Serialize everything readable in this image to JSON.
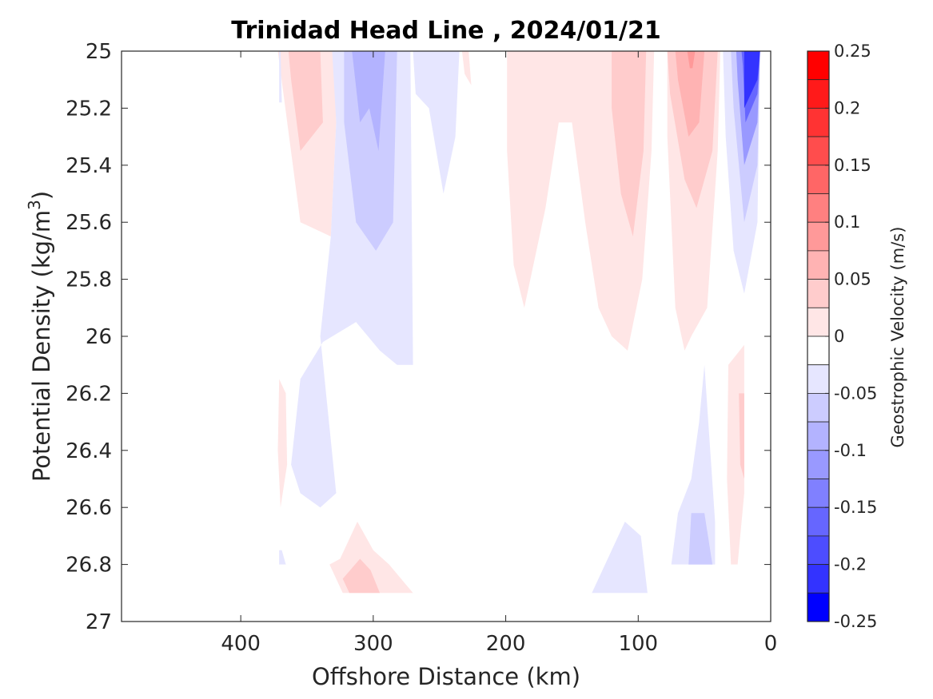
{
  "chart_data": {
    "type": "heatmap",
    "subtype": "filled-contour",
    "title": "Trinidad Head Line , 2024/01/21",
    "xlabel": "Offshore Distance (km)",
    "ylabel_prefix": "Potential Density (kg/m",
    "ylabel_sup": "3",
    "ylabel_suffix": ")",
    "colorbar_label": "Geostrophic Velocity (m/s)",
    "x_reversed": true,
    "xlim": [
      0,
      490
    ],
    "ylim": [
      25,
      27
    ],
    "y_reversed": true,
    "x_ticks": [
      400,
      300,
      200,
      100,
      0
    ],
    "x_tick_labels": [
      "400",
      "300",
      "200",
      "100",
      "0"
    ],
    "y_ticks": [
      25,
      25.2,
      25.4,
      25.6,
      25.8,
      26,
      26.2,
      26.4,
      26.6,
      26.8,
      27
    ],
    "y_tick_labels": [
      "25",
      "25.2",
      "25.4",
      "25.6",
      "25.8",
      "26",
      "26.2",
      "26.4",
      "26.6",
      "26.8",
      "27"
    ],
    "colorbar_ticks": [
      0.25,
      0.2,
      0.15,
      0.1,
      0.05,
      0,
      -0.05,
      -0.1,
      -0.15,
      -0.2,
      -0.25
    ],
    "colorbar_tick_labels": [
      "0.25",
      "0.2",
      "0.15",
      "0.1",
      "0.05",
      "0",
      "-0.05",
      "-0.1",
      "-0.15",
      "-0.2",
      "-0.25"
    ],
    "colorbar_levels": [
      {
        "range": [
          0.225,
          0.25
        ],
        "color": "#ff0000"
      },
      {
        "range": [
          0.2,
          0.225
        ],
        "color": "#ff1a1a"
      },
      {
        "range": [
          0.175,
          0.2
        ],
        "color": "#ff3333"
      },
      {
        "range": [
          0.15,
          0.175
        ],
        "color": "#ff4d4d"
      },
      {
        "range": [
          0.125,
          0.15
        ],
        "color": "#ff6666"
      },
      {
        "range": [
          0.1,
          0.125
        ],
        "color": "#ff8080"
      },
      {
        "range": [
          0.075,
          0.1
        ],
        "color": "#ff9999"
      },
      {
        "range": [
          0.05,
          0.075
        ],
        "color": "#ffb3b3"
      },
      {
        "range": [
          0.025,
          0.05
        ],
        "color": "#ffcccc"
      },
      {
        "range": [
          0.0,
          0.025
        ],
        "color": "#ffe6e6"
      },
      {
        "range": [
          -0.025,
          0.0
        ],
        "color": "#ffffff"
      },
      {
        "range": [
          -0.0001,
          0.0001
        ],
        "color": "#ffffff"
      },
      {
        "range": [
          -0.05,
          -0.025
        ],
        "color": "#e6e6ff"
      },
      {
        "range": [
          -0.075,
          -0.05
        ],
        "color": "#ccccff"
      },
      {
        "range": [
          -0.1,
          -0.075
        ],
        "color": "#b3b3ff"
      },
      {
        "range": [
          -0.125,
          -0.1
        ],
        "color": "#9999ff"
      },
      {
        "range": [
          -0.15,
          -0.125
        ],
        "color": "#8080ff"
      },
      {
        "range": [
          -0.175,
          -0.15
        ],
        "color": "#6666ff"
      },
      {
        "range": [
          -0.2,
          -0.175
        ],
        "color": "#4d4dff"
      },
      {
        "range": [
          -0.225,
          -0.2
        ],
        "color": "#3333ff"
      },
      {
        "range": [
          -0.25,
          -0.225
        ],
        "color": "#0000ff"
      }
    ],
    "regions": [
      {
        "id": "pos-370-top",
        "color": "#ffe6e6",
        "points": [
          [
            380,
            25
          ],
          [
            330,
            25
          ],
          [
            328,
            25.25
          ],
          [
            332,
            25.65
          ],
          [
            355,
            25.6
          ],
          [
            372,
            25.0
          ]
        ]
      },
      {
        "id": "pos-370-core",
        "color": "#ffcccc",
        "points": [
          [
            364,
            25
          ],
          [
            340,
            25
          ],
          [
            338,
            25.25
          ],
          [
            355,
            25.35
          ],
          [
            362,
            25.1
          ]
        ]
      },
      {
        "id": "neg-300-wide",
        "color": "#e6e6ff",
        "points": [
          [
            331,
            25
          ],
          [
            272,
            25
          ],
          [
            270,
            26.1
          ],
          [
            282,
            26.1
          ],
          [
            295,
            26.05
          ],
          [
            313,
            25.95
          ],
          [
            338,
            26.02
          ],
          [
            355,
            26.15
          ],
          [
            362,
            26.45
          ],
          [
            355,
            26.55
          ],
          [
            340,
            26.6
          ],
          [
            328,
            26.55
          ],
          [
            340,
            26.0
          ],
          [
            332,
            25.65
          ],
          [
            328,
            25.25
          ]
        ]
      },
      {
        "id": "neg-300-mid",
        "color": "#ccccff",
        "points": [
          [
            322,
            25
          ],
          [
            282,
            25
          ],
          [
            285,
            25.6
          ],
          [
            298,
            25.7
          ],
          [
            313,
            25.6
          ],
          [
            322,
            25.25
          ]
        ]
      },
      {
        "id": "neg-300-core",
        "color": "#b3b3ff",
        "points": [
          [
            316,
            25
          ],
          [
            291,
            25
          ],
          [
            296,
            25.35
          ],
          [
            303,
            25.2
          ],
          [
            310,
            25.25
          ]
        ]
      },
      {
        "id": "neg-250",
        "color": "#e6e6ff",
        "points": [
          [
            270,
            25
          ],
          [
            235,
            25
          ],
          [
            238,
            25.3
          ],
          [
            247,
            25.5
          ],
          [
            258,
            25.2
          ],
          [
            268,
            25.15
          ]
        ]
      },
      {
        "id": "pos-230",
        "color": "#ffe6e6",
        "points": [
          [
            233,
            25
          ],
          [
            228,
            25
          ],
          [
            226,
            25.12
          ],
          [
            231,
            25.08
          ]
        ]
      },
      {
        "id": "pos-200-100",
        "color": "#ffe6e6",
        "points": [
          [
            199,
            25
          ],
          [
            88,
            25
          ],
          [
            90,
            25.35
          ],
          [
            97,
            25.8
          ],
          [
            108,
            26.05
          ],
          [
            120,
            26.0
          ],
          [
            130,
            25.9
          ],
          [
            140,
            25.6
          ],
          [
            150,
            25.25
          ],
          [
            160,
            25.25
          ],
          [
            170,
            25.55
          ],
          [
            186,
            25.9
          ],
          [
            194,
            25.75
          ],
          [
            199,
            25.35
          ]
        ]
      },
      {
        "id": "pos-100-core",
        "color": "#ffcccc",
        "points": [
          [
            120,
            25
          ],
          [
            94,
            25
          ],
          [
            96,
            25.35
          ],
          [
            104,
            25.65
          ],
          [
            113,
            25.5
          ],
          [
            120,
            25.2
          ]
        ]
      },
      {
        "id": "pos-60-wide",
        "color": "#ffe6e6",
        "points": [
          [
            78,
            25
          ],
          [
            38,
            25
          ],
          [
            40,
            25.35
          ],
          [
            48,
            25.9
          ],
          [
            60,
            26.0
          ],
          [
            65,
            26.05
          ],
          [
            72,
            25.9
          ],
          [
            78,
            25.3
          ]
        ]
      },
      {
        "id": "pos-60-mid",
        "color": "#ffcccc",
        "points": [
          [
            78,
            25
          ],
          [
            40,
            25
          ],
          [
            44,
            25.35
          ],
          [
            56,
            25.55
          ],
          [
            65,
            25.45
          ],
          [
            76,
            25.15
          ]
        ]
      },
      {
        "id": "pos-60-core",
        "color": "#ffb3b3",
        "points": [
          [
            72,
            25
          ],
          [
            50,
            25
          ],
          [
            54,
            25.25
          ],
          [
            62,
            25.3
          ],
          [
            70,
            25.1
          ]
        ]
      },
      {
        "id": "pos-60-max",
        "color": "#ff9999",
        "points": [
          [
            63,
            25
          ],
          [
            57,
            25
          ],
          [
            59,
            25.06
          ],
          [
            61,
            25.06
          ]
        ]
      },
      {
        "id": "neg-coast-1",
        "color": "#e6e6ff",
        "points": [
          [
            36,
            25
          ],
          [
            8,
            25
          ],
          [
            10,
            25.6
          ],
          [
            20,
            25.85
          ],
          [
            28,
            25.7
          ],
          [
            34,
            25.3
          ]
        ]
      },
      {
        "id": "neg-coast-2",
        "color": "#ccccff",
        "points": [
          [
            30,
            25
          ],
          [
            8,
            25
          ],
          [
            10,
            25.4
          ],
          [
            20,
            25.6
          ],
          [
            28,
            25.2
          ]
        ]
      },
      {
        "id": "neg-coast-3",
        "color": "#9999ff",
        "points": [
          [
            26,
            25
          ],
          [
            8,
            25
          ],
          [
            10,
            25.25
          ],
          [
            20,
            25.4
          ],
          [
            25,
            25.1
          ]
        ]
      },
      {
        "id": "neg-coast-4",
        "color": "#6666ff",
        "points": [
          [
            22,
            25
          ],
          [
            8,
            25
          ],
          [
            10,
            25.15
          ],
          [
            19,
            25.25
          ],
          [
            21,
            25.05
          ]
        ]
      },
      {
        "id": "neg-coast-5",
        "color": "#3333ff",
        "points": [
          [
            20,
            25
          ],
          [
            8,
            25
          ],
          [
            10,
            25.1
          ],
          [
            20,
            25.2
          ]
        ]
      },
      {
        "id": "pos-coast-deep",
        "color": "#ffe6e6",
        "points": [
          [
            32,
            26.1
          ],
          [
            20,
            26.03
          ],
          [
            20,
            26.55
          ],
          [
            25,
            26.8
          ],
          [
            30,
            26.8
          ],
          [
            33,
            26.5
          ]
        ]
      },
      {
        "id": "pos-coast-deep-core",
        "color": "#ffcccc",
        "points": [
          [
            24,
            26.2
          ],
          [
            20,
            26.2
          ],
          [
            20,
            26.5
          ],
          [
            23,
            26.45
          ]
        ]
      },
      {
        "id": "neg-60-deep",
        "color": "#e6e6ff",
        "points": [
          [
            50,
            26.1
          ],
          [
            42,
            26.65
          ],
          [
            42,
            26.8
          ],
          [
            75,
            26.8
          ],
          [
            70,
            26.62
          ],
          [
            60,
            26.5
          ],
          [
            54,
            26.3
          ]
        ]
      },
      {
        "id": "neg-60-deep-core",
        "color": "#ccccff",
        "points": [
          [
            60,
            26.62
          ],
          [
            50,
            26.62
          ],
          [
            44,
            26.8
          ],
          [
            62,
            26.8
          ]
        ]
      },
      {
        "id": "neg-100-deep",
        "color": "#e6e6ff",
        "points": [
          [
            110,
            26.65
          ],
          [
            98,
            26.7
          ],
          [
            93,
            26.9
          ],
          [
            135,
            26.9
          ],
          [
            120,
            26.75
          ]
        ]
      },
      {
        "id": "pos-370-deep",
        "color": "#ffe6e6",
        "points": [
          [
            371,
            26.15
          ],
          [
            366,
            26.2
          ],
          [
            365,
            26.45
          ],
          [
            370,
            26.6
          ],
          [
            372,
            26.4
          ]
        ]
      },
      {
        "id": "pos-300-deep",
        "color": "#ffe6e6",
        "points": [
          [
            312,
            26.65
          ],
          [
            325,
            26.78
          ],
          [
            333,
            26.8
          ],
          [
            323,
            26.9
          ],
          [
            270,
            26.9
          ],
          [
            288,
            26.8
          ],
          [
            300,
            26.75
          ]
        ]
      },
      {
        "id": "pos-300-deep-core",
        "color": "#ffcccc",
        "points": [
          [
            310,
            26.78
          ],
          [
            323,
            26.85
          ],
          [
            318,
            26.9
          ],
          [
            295,
            26.9
          ],
          [
            302,
            26.82
          ]
        ]
      },
      {
        "id": "neg-370-top",
        "color": "#e6e6ff",
        "points": [
          [
            371,
            25
          ],
          [
            370,
            25
          ],
          [
            369,
            25.18
          ],
          [
            371,
            25.18
          ]
        ]
      },
      {
        "id": "neg-370-bottom",
        "color": "#e6e6ff",
        "points": [
          [
            371,
            26.75
          ],
          [
            369,
            26.75
          ],
          [
            366,
            26.8
          ],
          [
            371,
            26.8
          ]
        ]
      }
    ]
  }
}
